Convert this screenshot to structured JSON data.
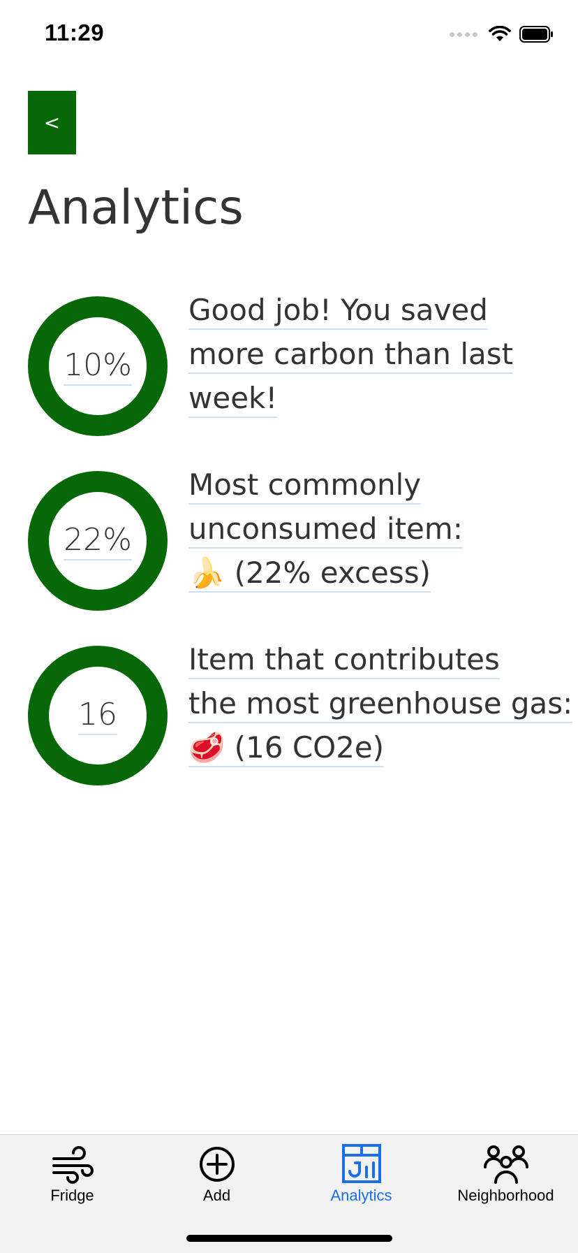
{
  "status_bar": {
    "time": "11:29"
  },
  "header": {
    "back_label": "<",
    "title": "Analytics"
  },
  "stats": [
    {
      "ring_value": "10%",
      "lines": [
        "Good job! You saved",
        "more carbon than last",
        "week!"
      ]
    },
    {
      "ring_value": "22%",
      "lines": [
        "Most commonly",
        "unconsumed item:",
        "🍌 (22% excess)"
      ]
    },
    {
      "ring_value": "16",
      "lines": [
        "Item that contributes",
        "the most greenhouse gas:",
        "🥩 (16 CO2e)"
      ]
    }
  ],
  "tabs": [
    {
      "label": "Fridge",
      "icon": "wind-icon",
      "active": false
    },
    {
      "label": "Add",
      "icon": "plus-circle-icon",
      "active": false
    },
    {
      "label": "Analytics",
      "icon": "analytics-chart-icon",
      "active": true
    },
    {
      "label": "Neighborhood",
      "icon": "people-icon",
      "active": false
    }
  ],
  "colors": {
    "accent_green": "#066806",
    "active_tab_blue": "#1a6fe8",
    "text": "#333333"
  }
}
